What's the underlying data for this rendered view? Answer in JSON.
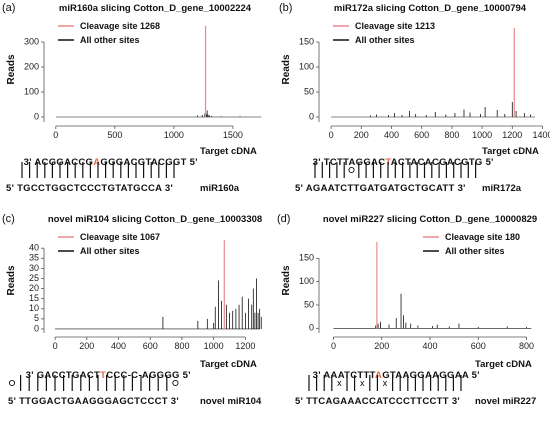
{
  "colors": {
    "cleavage": "#e9888a",
    "other": "#111111",
    "cut_base": "#e06a4b",
    "axis": "#555555"
  },
  "chart_data": [
    {
      "panel": "(a)",
      "type": "line",
      "title": "miR160a slicing Cotton_D_gene_10002224",
      "ylabel": "Reads",
      "xlim": [
        -100,
        1780
      ],
      "ylim": [
        -20,
        400
      ],
      "xticks": [
        0,
        500,
        1000,
        1500
      ],
      "yticks": [
        0,
        100,
        200,
        300
      ],
      "legend": [
        "Cleavage site 1268",
        "All other sites"
      ],
      "legend_position": "top-left",
      "series": [
        {
          "name": "Cleavage site 1268",
          "x": [
            1268
          ],
          "y": [
            365
          ]
        },
        {
          "name": "All other sites",
          "x": [
            1200,
            1240,
            1262,
            1275,
            1282,
            1290,
            1300,
            1320,
            1400,
            1560
          ],
          "y": [
            6,
            8,
            14,
            12,
            26,
            9,
            6,
            4,
            3,
            3
          ]
        }
      ],
      "alignment": {
        "target_prefix": "3' ",
        "target_pre": "ACGGACCG",
        "target_cut": "A",
        "target_post": "GGGACGTACGGT",
        "target_suffix": " 5'",
        "target_label": "Target cDNA",
        "mirna": "5' TGCCTGGCTCCCTGTATGCCA 3'",
        "mirna_label": "miR160a",
        "pairs": "||||||||||||||||||||| "
      }
    },
    {
      "panel": "(b)",
      "type": "line",
      "title": "miR172a slicing Cotton_D_gene_10000794",
      "ylabel": "Reads",
      "xlim": [
        -80,
        1390
      ],
      "ylim": [
        -10,
        200
      ],
      "xticks": [
        0,
        200,
        400,
        600,
        800,
        1000,
        1200,
        1400
      ],
      "yticks": [
        0,
        50,
        100,
        150
      ],
      "legend": [
        "Cleavage site 1213",
        "All other sites"
      ],
      "legend_position": "top-left",
      "series": [
        {
          "name": "Cleavage site 1213",
          "x": [
            1213
          ],
          "y": [
            178
          ]
        },
        {
          "name": "All other sites",
          "x": [
            260,
            300,
            380,
            420,
            470,
            520,
            560,
            630,
            690,
            760,
            820,
            880,
            920,
            990,
            1020,
            1100,
            1150,
            1200,
            1225,
            1280,
            1320
          ],
          "y": [
            3,
            5,
            4,
            8,
            4,
            12,
            6,
            4,
            10,
            5,
            8,
            15,
            9,
            6,
            20,
            14,
            6,
            30,
            12,
            8,
            5
          ]
        }
      ],
      "alignment": {
        "target_prefix": "3' ",
        "target_pre": "TCTTAGGAC",
        "target_cut": "T",
        "target_post": "ACTACACGACGTG",
        "target_suffix": " 5'",
        "target_label": "Target cDNA",
        "mirna": "5' AGAATCTTGATGATGCTGCATT 3'",
        "mirna_label": "miR172a",
        "pairs": "|||||o|||||||||||||||||"
      }
    },
    {
      "panel": "(c)",
      "type": "line",
      "title": "novel miR104 slicing Cotton_D_gene_10003308",
      "ylabel": "Reads",
      "xlim": [
        -70,
        1330
      ],
      "ylim": [
        -2,
        50
      ],
      "xticks": [
        0,
        200,
        400,
        600,
        800,
        1000,
        1200
      ],
      "yticks": [
        0,
        5,
        10,
        15,
        20,
        25,
        30,
        35,
        40
      ],
      "legend": [
        "Cleavage site 1067",
        "All other sites"
      ],
      "legend_position": "top-left",
      "series": [
        {
          "name": "Cleavage site 1067",
          "x": [
            1067
          ],
          "y": [
            44
          ]
        },
        {
          "name": "All other sites",
          "x": [
            680,
            900,
            960,
            1000,
            1010,
            1030,
            1050,
            1080,
            1100,
            1120,
            1140,
            1160,
            1180,
            1200,
            1220,
            1240,
            1250,
            1260,
            1270,
            1280,
            1290,
            1300
          ],
          "y": [
            6,
            4,
            5,
            3,
            11,
            24,
            14,
            12,
            8,
            9,
            10,
            12,
            16,
            8,
            15,
            12,
            20,
            8,
            25,
            8,
            10,
            6
          ]
        }
      ],
      "alignment": {
        "target_prefix": "3' ",
        "target_pre": "GACCTGACT",
        "target_cut": "T",
        "target_post": "CCC-C-AGGGG",
        "target_suffix": " 5'",
        "target_label": "Target cDNA",
        "mirna": "5' TTGGACTGAAGGGAGCTCCCT 3'",
        "mirna_label": "novel miR104",
        "pairs": "o||||||||||||||||||o"
      }
    },
    {
      "panel": "(d)",
      "type": "line",
      "title": "novel miR227 slicing Cotton_D_gene_10000829",
      "ylabel": "Reads",
      "xlim": [
        -60,
        860
      ],
      "ylim": [
        -10,
        215
      ],
      "xticks": [
        0,
        200,
        400,
        600,
        800
      ],
      "yticks": [
        0,
        50,
        100,
        150
      ],
      "legend": [
        "Cleavage site 180",
        "All other sites"
      ],
      "legend_position": "top-right",
      "series": [
        {
          "name": "Cleavage site 180",
          "x": [
            180
          ],
          "y": [
            185
          ]
        },
        {
          "name": "All other sites",
          "x": [
            175,
            185,
            195,
            230,
            260,
            280,
            290,
            300,
            320,
            350,
            410,
            430,
            480,
            520,
            600,
            720,
            800
          ],
          "y": [
            6,
            10,
            14,
            8,
            22,
            74,
            28,
            12,
            10,
            6,
            5,
            8,
            4,
            10,
            3,
            4,
            3
          ]
        }
      ],
      "alignment": {
        "target_prefix": "3' ",
        "target_pre": "AAATCTTT",
        "target_cut": "A",
        "target_post": "GTAAGGAAGGAA",
        "target_suffix": " 5'",
        "target_label": "Target cDNA",
        "mirna": "5' TTCAGAAACCATCCCTTCCTT 3'",
        "mirna_label": "novel miR227",
        "pairs": "||||x||x||x||||||||||"
      }
    }
  ]
}
